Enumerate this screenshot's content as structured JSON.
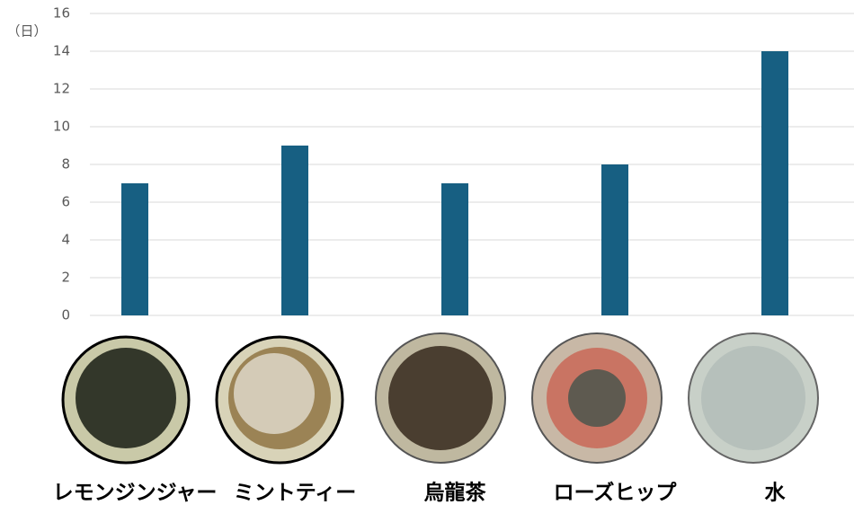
{
  "chart_data": {
    "type": "bar",
    "y_label": "（日）",
    "categories": [
      "レモンジンジャー",
      "ミントティー",
      "烏龍茶",
      "ローズヒップ",
      "水"
    ],
    "values": [
      7,
      9,
      7,
      8,
      14
    ],
    "color": "#175f82",
    "ylim": [
      0,
      16
    ],
    "yticks": [
      0,
      2,
      4,
      6,
      8,
      10,
      12,
      14,
      16
    ],
    "grid": true
  }
}
